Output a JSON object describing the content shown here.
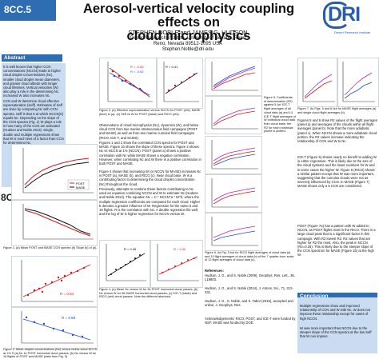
{
  "tag": "8CC.5",
  "title_line1": "Aerosol-vertical velocity coupling effects on",
  "title_line2": "cloud microphysics",
  "authors": "STEPHEN NOBLE and JAMES G. HUDSON",
  "affiliation": "Desert Research Institute, University of Nevada, Reno",
  "address": "Reno, Nevada 89512-1095 USA",
  "email": "Stephen.Noble@dri.edu",
  "logo_text": "DRI",
  "logo_sub": "Desert Research Institute",
  "abstract_head": "Abstract",
  "abstract_text": "It is well known that higher CCN concentrations (NCCN) leads to higher cloud droplet concentrations (Nc), smaller cloud droplet mean diameters, and greater cloud albedo with longer cloud lifetimes. Vertical velocities (W) also play a role in the determining Nc. Increased W also increases Nc.",
  "abstract_text2": "CCN and W determine cloud effective supersaturation (Seff). Estimates of Seff are done by comparing Nc with CCN spectra. Seff is that S at which NCCN(S) equals Nc. Depending on the slope of the CCN spectra (Fig. 1) W plays a role in how many of the CCN are activated (Hudson and Noble 2013). Single, double and multiple regressions show that W is much less of a factor than CCN for determining Nc.",
  "fig1_caption": "Figure 1. (a) Mean POST and MASE CCN spectra (b) Slope (k) of (a).",
  "fig1_legend": [
    "POST",
    "MASE"
  ],
  "fig2_caption": "Figure 2. Mean droplet concentrations (Nc) versus below cloud NCCN at 1% S (a) for 1k POST horizontal cloud passes; (b) Nc versus W for 16 flights of POST and MASE (data from Fig. 3).",
  "fig2_stats": [
    "R = 0.84",
    "R = 0.68"
  ],
  "fig3_caption": "Figure 3. (a) Effective supersaturation versus NCCN for POST (red), MASE (blue) in (a). (b) Seff vs W for POST (black) and RICO (red).",
  "fig3_stats": [
    "R = -0.65",
    "R = -0.62",
    "R = 0.41"
  ],
  "mid_text1": "Observations of cloud microphysics (Nc), dynamics (W), and below cloud CCN from two marine stratocumulus field campaigns (POST and MASE) as well as from two marine cumulus field campaigns (RICO, ICE-T, and SCMS).",
  "mid_text2": "Figures 1 and 2 show the correlated CCN spectra for POST and MASE. Figure 1b shows the slope of these spectra. Figure 2 shows Nc vs NCCN at 1% (NCCN). POST (panel a) shows a positive correlation with Nc while MASE shows a negative correlation. However, when correlating Nc and W there is a positive correlation in both POST and MASE.",
  "mid_text3": "Figure 4 shows that increasing W (or NCCN for MASE) increases Nc in POST (a), MASE (b), and RICO (c). Near cloud base, W is a contributing factor to determining the cloud droplet concentration (Nc) throughout the cloud.",
  "mid_text4": "Previously, attempts to combine these factors contributing to Nc used an equation combining NCCN and W to estimate Nc (Hudson and Noble 2013). The equation Nc = C * NCCN^a * W^b, where the multiple regression coefficients are computed for each cloud. Higher b denotes a greater influence of W. Regression for the same 5 and 16 flights. R is the correlation with Nc. A double regression fits well, and the log of W is higher regression for NCCN versus W.",
  "fig4_caption": "Figure 4. (a) Mean Nc versus W for 34 POST horizontal cloud passes; (b) Nc versus W for 36 MASE horizontal cloud passes; (c) ICE-T (black) and RICO (red) cloud passes. Note the different abscissa.",
  "fig4_stats": [
    "R = 0.45",
    "R = 0.40"
  ],
  "fig5_caption": "Figure 5. Coefficients of determination (R2) against 5 (w/ ICE-T flight averages of all cloud data (a) and 14 ICE-T flight averages of W individual cloud data from cloud base, the R2 for each individual plume is plotted.",
  "fig6_caption": "Figure 6. As Fig. 5 but for RICO flight averages of cloud data (a) and 15 flight averages of cloud data (b) of the 7 quarter-hour scale of 12 flight averages of cloud data (c).",
  "references_head": "References:",
  "references": [
    "Hudson, J. G., and S. Noble (2009), Geophys. Res. Lett., 36, L18803.",
    "Hudson, J. G., and S. Noble (2014), J. Atmos. Sci., 71, 312-331.",
    "Hudson, J. G., S. Noble, and S. Tabor (2015), accepted and online, J. Geophys. Res."
  ],
  "ack_text": "Acknowledgements: RICO, POST, and ICE-T were funded by NSF. MASE was funded by DOE.",
  "fig7_caption": "Figure 7. As Figs. 5 and 6 but for MASE flight averages (a) and single cloud flight averages (b).",
  "right_text1": "Figures 5 and 6 show R2 values of the flight averages (panel a) and averages of the clouds within all flight averages (panel b). Note that the more adiabatic (panel c). When NCCN shows a more adiabatic cloud portion, the R2 values increase indicating the relationship of CCN and W to Nc.",
  "right_text2": "ICE-T (Figure 5) shows nearly no benefit to adding W in either regression. This is likely due to the size of the cloud systems and the lower numbers for W and in some cases the higher W. Figure 6 (RICO) shows a similar pattern-except that W was more important, suggesting that the cumulus clouds were not as severely influenced by CCN. In MASE (Figure 7) MASE shows only a 5 CCN are considered.",
  "right_text3": "POST (Figure 7a) has a pattern with W added to NCCN, as POST flights most in the RICO. There is a large cloud peak that is a significant factor in this campaign. With R2 lowest R2. R2 values that are higher for R2 the most. Also, the peak in NCCN (R2=0.26). This is likely due to the steeper slope of the CCN spectrum for MASE (Figure 1b) at the high W.",
  "conclusion_head": "Conclusion",
  "conclusion_items": [
    "Multiple regressions show and improved relationship of CCN and W with Nc. W does not improve these relationship except for cases of high NCCN.",
    "W was more important than NCCN due to the steeper slope of the CCN spectra at the low Seff that W can impose."
  ],
  "colors": {
    "accent": "#2f6db3",
    "panel": "#c9dcf2",
    "red": "#d21c1c",
    "blue": "#1f4fd1",
    "black": "#111111",
    "magenta": "#c31fc3"
  }
}
